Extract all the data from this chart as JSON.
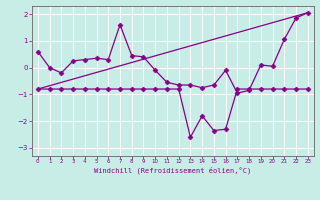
{
  "xlabel": "Windchill (Refroidissement éolien,°C)",
  "bg_color": "#c8ece6",
  "line_color": "#880088",
  "grid_color": "#aadddd",
  "ylim": [
    -3.3,
    2.3
  ],
  "xlim": [
    -0.5,
    23.5
  ],
  "yticks": [
    -3,
    -2,
    -1,
    0,
    1,
    2
  ],
  "xticks": [
    0,
    1,
    2,
    3,
    4,
    5,
    6,
    7,
    8,
    9,
    10,
    11,
    12,
    13,
    14,
    15,
    16,
    17,
    18,
    19,
    20,
    21,
    22,
    23
  ],
  "series1_x": [
    0,
    1,
    2,
    3,
    4,
    5,
    6,
    7,
    8,
    9,
    10,
    11,
    12,
    13,
    14,
    15,
    16,
    17,
    18,
    19,
    20,
    21,
    22,
    23
  ],
  "series1_y": [
    0.6,
    0.0,
    -0.2,
    0.25,
    0.3,
    0.35,
    0.3,
    1.6,
    0.45,
    0.4,
    -0.1,
    -0.55,
    -0.65,
    -0.65,
    -0.75,
    -0.65,
    -0.1,
    -0.95,
    -0.85,
    0.1,
    0.05,
    1.05,
    1.85,
    2.05
  ],
  "series2_x": [
    0,
    1,
    2,
    3,
    4,
    5,
    6,
    7,
    8,
    9,
    10,
    11,
    12,
    13,
    14,
    15,
    16,
    17,
    18,
    19,
    20,
    21,
    22,
    23
  ],
  "series2_y": [
    -0.8,
    -0.8,
    -0.8,
    -0.8,
    -0.8,
    -0.8,
    -0.8,
    -0.8,
    -0.8,
    -0.8,
    -0.8,
    -0.8,
    -0.8,
    -2.6,
    -1.8,
    -2.35,
    -2.3,
    -0.8,
    -0.8,
    -0.8,
    -0.8,
    -0.8,
    -0.8,
    -0.8
  ],
  "series3_x": [
    0,
    23
  ],
  "series3_y": [
    -0.8,
    2.05
  ]
}
